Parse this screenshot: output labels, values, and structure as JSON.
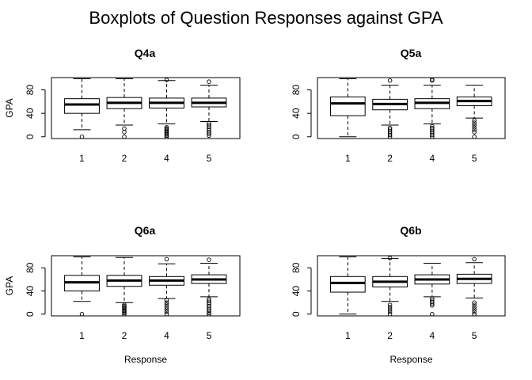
{
  "figure": {
    "title": "Boxplots of Question Responses against GPA"
  },
  "chart_data": [
    {
      "type": "boxplot",
      "title": "Q4a",
      "xlabel": "",
      "ylabel": "GPA",
      "categories": [
        "1",
        "2",
        "4",
        "5"
      ],
      "yticks": [
        0,
        40,
        80
      ],
      "ylim": [
        -3,
        101
      ],
      "boxes": [
        {
          "category": "1",
          "min": 12,
          "q1": 40,
          "median": 55,
          "q3": 65,
          "max": 99,
          "outliers": [
            0
          ]
        },
        {
          "category": "2",
          "min": 20,
          "q1": 48,
          "median": 58,
          "q3": 67,
          "max": 99,
          "outliers": [
            0,
            8,
            14
          ]
        },
        {
          "category": "4",
          "min": 22,
          "q1": 49,
          "median": 58,
          "q3": 66,
          "max": 96,
          "outliers": [
            0,
            2,
            4,
            6,
            8,
            10,
            12,
            14,
            16,
            97
          ]
        },
        {
          "category": "5",
          "min": 26,
          "q1": 51,
          "median": 58,
          "q3": 66,
          "max": 88,
          "outliers": [
            2,
            5,
            8,
            11,
            14,
            17,
            20,
            23,
            94
          ]
        }
      ]
    },
    {
      "type": "boxplot",
      "title": "Q5a",
      "xlabel": "",
      "ylabel": "",
      "categories": [
        "1",
        "2",
        "4",
        "5"
      ],
      "yticks": [
        0,
        40,
        80
      ],
      "ylim": [
        -3,
        101
      ],
      "boxes": [
        {
          "category": "1",
          "min": 0,
          "q1": 36,
          "median": 57,
          "q3": 68,
          "max": 99,
          "outliers": []
        },
        {
          "category": "2",
          "min": 20,
          "q1": 46,
          "median": 56,
          "q3": 64,
          "max": 88,
          "outliers": [
            0,
            3,
            6,
            9,
            12,
            15,
            96
          ]
        },
        {
          "category": "4",
          "min": 22,
          "q1": 48,
          "median": 58,
          "q3": 65,
          "max": 88,
          "outliers": [
            0,
            3,
            6,
            9,
            12,
            15,
            18,
            96,
            98
          ]
        },
        {
          "category": "5",
          "min": 32,
          "q1": 53,
          "median": 61,
          "q3": 68,
          "max": 88,
          "outliers": [
            0,
            8,
            12,
            16,
            20,
            24,
            28
          ]
        }
      ]
    },
    {
      "type": "boxplot",
      "title": "Q6a",
      "xlabel": "Response",
      "ylabel": "GPA",
      "categories": [
        "1",
        "2",
        "4",
        "5"
      ],
      "yticks": [
        0,
        40,
        80
      ],
      "ylim": [
        -3,
        101
      ],
      "boxes": [
        {
          "category": "1",
          "min": 22,
          "q1": 40,
          "median": 55,
          "q3": 67,
          "max": 99,
          "outliers": [
            0
          ]
        },
        {
          "category": "2",
          "min": 20,
          "q1": 48,
          "median": 58,
          "q3": 67,
          "max": 98,
          "outliers": [
            0,
            2,
            4,
            6,
            8,
            10,
            12,
            14,
            16
          ]
        },
        {
          "category": "4",
          "min": 27,
          "q1": 50,
          "median": 58,
          "q3": 65,
          "max": 87,
          "outliers": [
            0,
            4,
            8,
            12,
            16,
            20,
            24,
            95
          ]
        },
        {
          "category": "5",
          "min": 30,
          "q1": 53,
          "median": 60,
          "q3": 68,
          "max": 88,
          "outliers": [
            0,
            2,
            5,
            8,
            11,
            14,
            17,
            20,
            23,
            26,
            94
          ]
        }
      ]
    },
    {
      "type": "boxplot",
      "title": "Q6b",
      "xlabel": "Response",
      "ylabel": "",
      "categories": [
        "1",
        "2",
        "4",
        "5"
      ],
      "yticks": [
        0,
        40,
        80
      ],
      "ylim": [
        -3,
        101
      ],
      "boxes": [
        {
          "category": "1",
          "min": 0,
          "q1": 38,
          "median": 54,
          "q3": 65,
          "max": 99,
          "outliers": []
        },
        {
          "category": "2",
          "min": 22,
          "q1": 47,
          "median": 56,
          "q3": 65,
          "max": 96,
          "outliers": [
            0,
            4,
            8,
            12,
            16,
            97
          ]
        },
        {
          "category": "4",
          "min": 30,
          "q1": 52,
          "median": 60,
          "q3": 68,
          "max": 88,
          "outliers": [
            0,
            15,
            18,
            21,
            24,
            27
          ]
        },
        {
          "category": "5",
          "min": 28,
          "q1": 53,
          "median": 61,
          "q3": 69,
          "max": 89,
          "outliers": [
            0,
            4,
            8,
            12,
            16,
            20,
            95
          ]
        }
      ]
    }
  ]
}
